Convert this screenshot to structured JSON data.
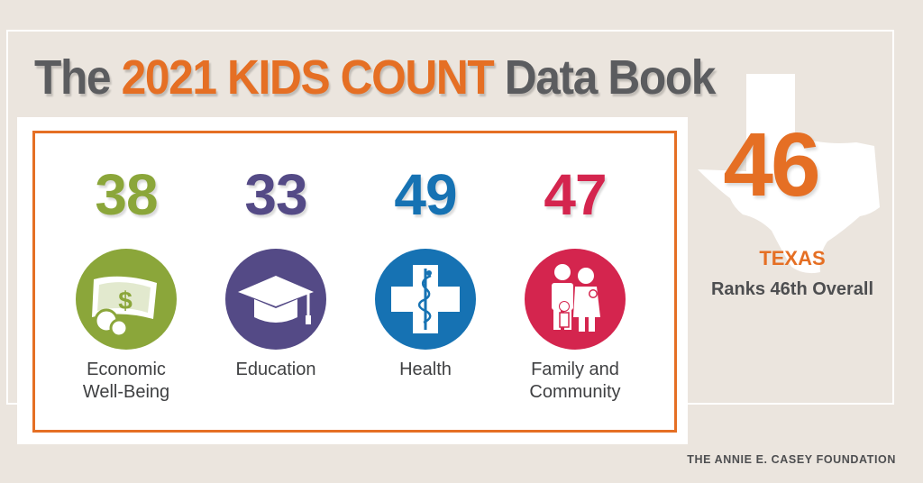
{
  "header": {
    "title_prefix": "The ",
    "title_accent": "2021 KIDS COUNT",
    "title_suffix": " Data Book"
  },
  "colors": {
    "orange": "#e56f24",
    "economic": "#8ba63a",
    "education": "#544a86",
    "health": "#1672b3",
    "family": "#d4254e"
  },
  "categories": [
    {
      "rank": "38",
      "label_line1": "Economic",
      "label_line2": "Well-Being",
      "icon": "money-icon"
    },
    {
      "rank": "33",
      "label_line1": "Education",
      "label_line2": "",
      "icon": "graduation-cap-icon"
    },
    {
      "rank": "49",
      "label_line1": "Health",
      "label_line2": "",
      "icon": "medical-cross-icon"
    },
    {
      "rank": "47",
      "label_line1": "Family and",
      "label_line2": "Community",
      "icon": "family-icon"
    }
  ],
  "overall": {
    "rank": "46",
    "state": "TEXAS",
    "text": "Ranks 46th Overall",
    "icon": "texas-map-icon"
  },
  "footer": {
    "foundation": "THE ANNIE E. CASEY FOUNDATION"
  }
}
